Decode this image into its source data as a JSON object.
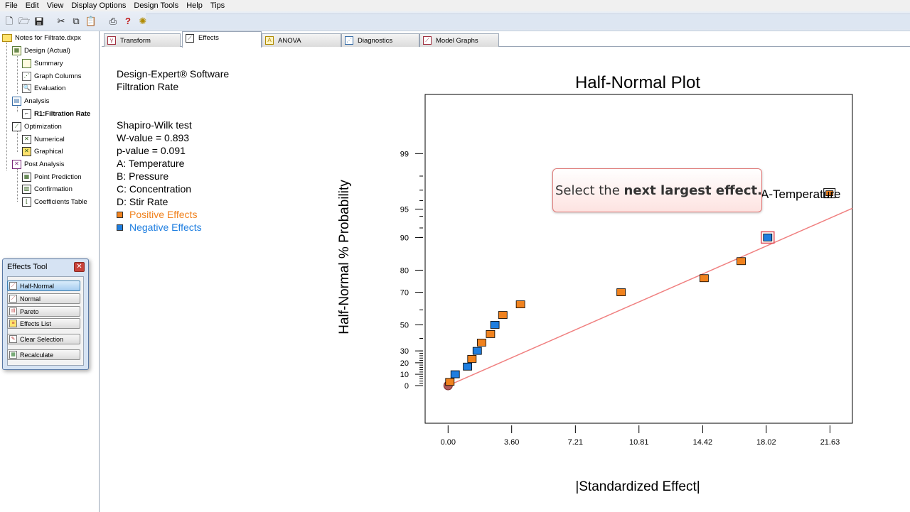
{
  "menu": [
    "File",
    "Edit",
    "View",
    "Display Options",
    "Design Tools",
    "Help",
    "Tips"
  ],
  "toolbar_icons": [
    "new-file-icon",
    "open-folder-icon",
    "save-icon",
    "cut-icon",
    "copy-icon",
    "paste-icon",
    "print-icon",
    "help-icon",
    "tip-bulb-icon"
  ],
  "tree": {
    "root": "Notes for Filtrate.dxpx",
    "design": "Design (Actual)",
    "summary": "Summary",
    "graph_columns": "Graph Columns",
    "evaluation": "Evaluation",
    "analysis": "Analysis",
    "r1": "R1:Filtration Rate",
    "optimization": "Optimization",
    "numerical": "Numerical",
    "graphical": "Graphical",
    "post_analysis": "Post Analysis",
    "point_prediction": "Point Prediction",
    "confirmation": "Confirmation",
    "coefficients_table": "Coefficients Table"
  },
  "effects_tool": {
    "title": "Effects Tool",
    "buttons": [
      "Half-Normal",
      "Normal",
      "Pareto",
      "Effects List",
      "Clear Selection",
      "Recalculate"
    ]
  },
  "tabs": [
    "Transform",
    "Effects",
    "ANOVA",
    "Diagnostics",
    "Model Graphs"
  ],
  "info": {
    "software": "Design-Expert® Software",
    "response": "Filtration Rate",
    "test": "Shapiro-Wilk test",
    "w_value": "W-value = 0.893",
    "p_value": "p-value = 0.091",
    "factor_a": "A: Temperature",
    "factor_b": "B: Pressure",
    "factor_c": "C: Concentration",
    "factor_d": "D: Stir Rate",
    "positive": "Positive Effects",
    "negative": "Negative Effects"
  },
  "colors": {
    "positive": "#f0821e",
    "negative": "#1e7ee0",
    "line": "#f08080",
    "callout_border": "#e07a78"
  },
  "callout": {
    "text_plain": "Select the ",
    "text_bold": "next largest effect."
  },
  "chart_data": {
    "type": "scatter",
    "title": "Half-Normal Plot",
    "xlabel": "|Standardized Effect|",
    "ylabel": "Half-Normal % Probability",
    "xticks": [
      "0.00",
      "3.60",
      "7.21",
      "10.81",
      "14.42",
      "18.02",
      "21.63"
    ],
    "xlim": [
      -1.3,
      22.9
    ],
    "yticks": [
      0,
      10,
      20,
      30,
      50,
      70,
      80,
      90,
      95,
      99
    ],
    "point_label": "A-Temperature",
    "fit_line": {
      "from": [
        0,
        0
      ],
      "to": [
        22.9,
        95.1
      ]
    },
    "points": [
      {
        "x": 0.0,
        "y": 0.0,
        "sign": "origin"
      },
      {
        "x": 0.1,
        "y": 3.3,
        "sign": "positive"
      },
      {
        "x": 0.4,
        "y": 10.0,
        "sign": "negative"
      },
      {
        "x": 1.1,
        "y": 16.7,
        "sign": "negative"
      },
      {
        "x": 1.35,
        "y": 23.3,
        "sign": "positive"
      },
      {
        "x": 1.65,
        "y": 30.0,
        "sign": "negative"
      },
      {
        "x": 1.9,
        "y": 36.7,
        "sign": "positive"
      },
      {
        "x": 2.4,
        "y": 43.3,
        "sign": "positive"
      },
      {
        "x": 2.65,
        "y": 50.0,
        "sign": "negative"
      },
      {
        "x": 3.1,
        "y": 56.7,
        "sign": "positive"
      },
      {
        "x": 4.1,
        "y": 63.3,
        "sign": "positive"
      },
      {
        "x": 9.8,
        "y": 70.0,
        "sign": "positive"
      },
      {
        "x": 14.5,
        "y": 76.7,
        "sign": "positive"
      },
      {
        "x": 16.6,
        "y": 83.3,
        "sign": "positive"
      },
      {
        "x": 18.1,
        "y": 90.0,
        "sign": "negative",
        "highlight": true
      },
      {
        "x": 21.6,
        "y": 96.7,
        "sign": "positive",
        "selected": true
      }
    ]
  }
}
